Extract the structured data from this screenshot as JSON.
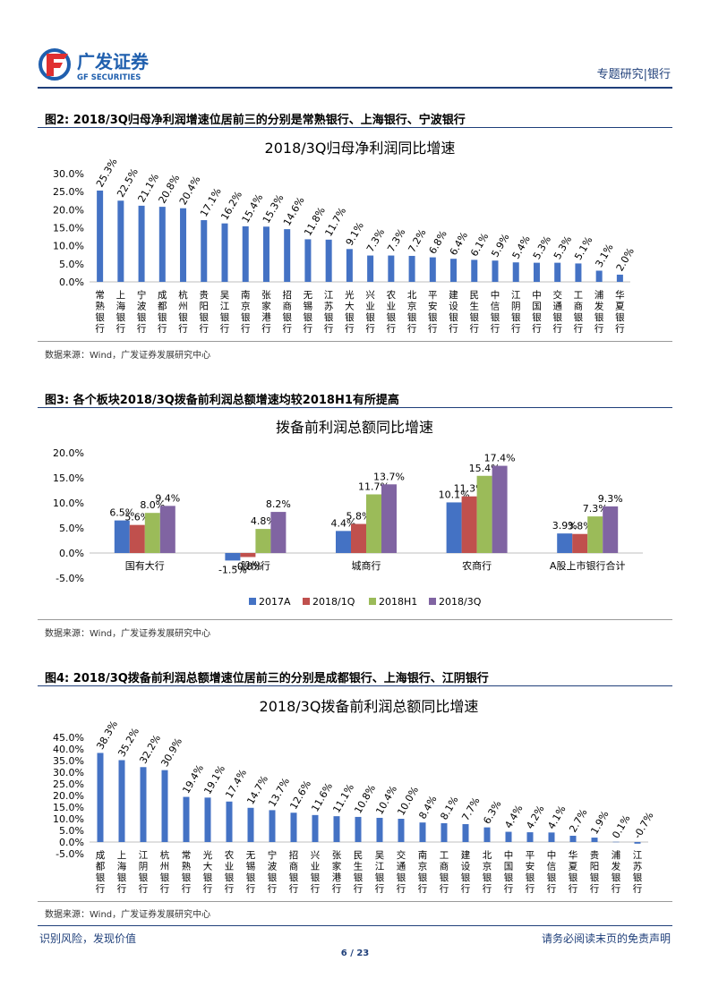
{
  "header": {
    "logo_cn": "广发证券",
    "logo_en": "GF SECURITIES",
    "section": "专题研究|银行"
  },
  "figures": [
    {
      "label": "图2: 2018/3Q归母净利润增速位居前三的分别是常熟银行、上海银行、宁波银行",
      "source": "数据来源：Wind，广发证券发展研究中心"
    },
    {
      "label": "图3: 各个板块2018/3Q拨备前利润总额增速均较2018H1有所提高",
      "source": "数据来源：Wind，广发证券发展研究中心"
    },
    {
      "label": "图4: 2018/3Q拨备前利润总额增速位居前三的分别是成都银行、上海银行、江阴银行",
      "source": "数据来源：Wind，广发证券发展研究中心"
    }
  ],
  "chart_data": [
    {
      "type": "bar",
      "title": "2018/3Q归母净利润同比增速",
      "categories": [
        "常熟银行",
        "上海银行",
        "宁波银行",
        "成都银行",
        "杭州银行",
        "贵阳银行",
        "吴江银行",
        "南京银行",
        "张家港行",
        "招商银行",
        "无锡银行",
        "江苏银行",
        "光大银行",
        "兴业银行",
        "农业银行",
        "北京银行",
        "平安银行",
        "建设银行",
        "民生银行",
        "中信银行",
        "江阴银行",
        "中国银行",
        "交通银行",
        "工商银行",
        "浦发银行",
        "华夏银行"
      ],
      "values": [
        25.3,
        22.5,
        21.1,
        20.8,
        20.4,
        17.1,
        16.2,
        15.4,
        15.3,
        14.6,
        11.8,
        11.7,
        9.1,
        7.3,
        7.3,
        7.2,
        6.8,
        6.4,
        6.1,
        5.9,
        5.4,
        5.3,
        5.3,
        5.1,
        3.1,
        2.0
      ],
      "labels": [
        "25.3%",
        "22.5%",
        "21.1%",
        "20.8%",
        "20.4%",
        "17.1%",
        "16.2%",
        "15.4%",
        "15.3%",
        "14.6%",
        "11.8%",
        "11.7%",
        "9.1%",
        "7.3%",
        "7.3%",
        "7.2%",
        "6.8%",
        "6.4%",
        "6.1%",
        "5.9%",
        "5.4%",
        "5.3%",
        "5.3%",
        "5.1%",
        "3.1%",
        "2.0%"
      ],
      "yticks": [
        "0.0%",
        "5.0%",
        "10.0%",
        "15.0%",
        "20.0%",
        "25.0%",
        "30.0%"
      ],
      "ylim": [
        0,
        30
      ],
      "color": "#4472c4",
      "grid": false
    },
    {
      "type": "bar",
      "title": "拨备前利润总额同比增速",
      "categories": [
        "国有大行",
        "股份行",
        "城商行",
        "农商行",
        "A股上市银行合计"
      ],
      "series": [
        {
          "name": "2017A",
          "color": "#4472c4",
          "values": [
            6.5,
            -1.5,
            4.4,
            10.1,
            3.9
          ],
          "labels": [
            "6.5%",
            "-1.5%",
            "4.4%",
            "10.1%",
            "3.9%"
          ]
        },
        {
          "name": "2018/1Q",
          "color": "#c0504d",
          "values": [
            5.6,
            -0.8,
            5.8,
            11.3,
            3.8
          ],
          "labels": [
            "5.6%",
            "-0.8%",
            "5.8%",
            "11.3%",
            "3.8%"
          ]
        },
        {
          "name": "2018H1",
          "color": "#9bbb59",
          "values": [
            8.0,
            4.8,
            11.7,
            15.4,
            7.3
          ],
          "labels": [
            "8.0%",
            "4.8%",
            "11.7%",
            "15.4%",
            "7.3%"
          ]
        },
        {
          "name": "2018/3Q",
          "color": "#8064a2",
          "values": [
            9.4,
            8.2,
            13.7,
            17.4,
            9.3
          ],
          "labels": [
            "9.4%",
            "8.2%",
            "13.7%",
            "17.4%",
            "9.3%"
          ]
        }
      ],
      "yticks": [
        "-5.0%",
        "0.0%",
        "5.0%",
        "10.0%",
        "15.0%",
        "20.0%"
      ],
      "ylim": [
        -5,
        20
      ],
      "legend": "bottom",
      "grid": false
    },
    {
      "type": "bar",
      "title": "2018/3Q拨备前利润总额同比增速",
      "categories": [
        "成都银行",
        "上海银行",
        "江阴银行",
        "杭州银行",
        "常熟银行",
        "光大银行",
        "农业银行",
        "无锡银行",
        "宁波银行",
        "招商银行",
        "兴业银行",
        "张家港行",
        "民生银行",
        "吴江银行",
        "交通银行",
        "南京银行",
        "工商银行",
        "建设银行",
        "北京银行",
        "中国银行",
        "平安银行",
        "中信银行",
        "华夏银行",
        "贵阳银行",
        "浦发银行",
        "江苏银行"
      ],
      "values": [
        38.3,
        35.2,
        32.2,
        30.9,
        19.4,
        19.1,
        17.4,
        14.7,
        13.7,
        12.6,
        11.6,
        11.1,
        10.8,
        10.4,
        10.0,
        8.4,
        8.1,
        7.7,
        6.3,
        4.4,
        4.2,
        4.1,
        2.7,
        1.9,
        0.1,
        -0.7
      ],
      "labels": [
        "38.3%",
        "35.2%",
        "32.2%",
        "30.9%",
        "19.4%",
        "19.1%",
        "17.4%",
        "14.7%",
        "13.7%",
        "12.6%",
        "11.6%",
        "11.1%",
        "10.8%",
        "10.4%",
        "10.0%",
        "8.4%",
        "8.1%",
        "7.7%",
        "6.3%",
        "4.4%",
        "4.2%",
        "4.1%",
        "2.7%",
        "1.9%",
        "0.1%",
        "-0.7%"
      ],
      "yticks": [
        "-5.0%",
        "0.0%",
        "5.0%",
        "10.0%",
        "15.0%",
        "20.0%",
        "25.0%",
        "30.0%",
        "35.0%",
        "40.0%",
        "45.0%"
      ],
      "ylim": [
        -5,
        45
      ],
      "color": "#4472c4",
      "grid": false
    }
  ],
  "footer": {
    "left": "识别风险，发现价值",
    "right": "请务必阅读末页的免责声明",
    "page": "6 / 23"
  }
}
